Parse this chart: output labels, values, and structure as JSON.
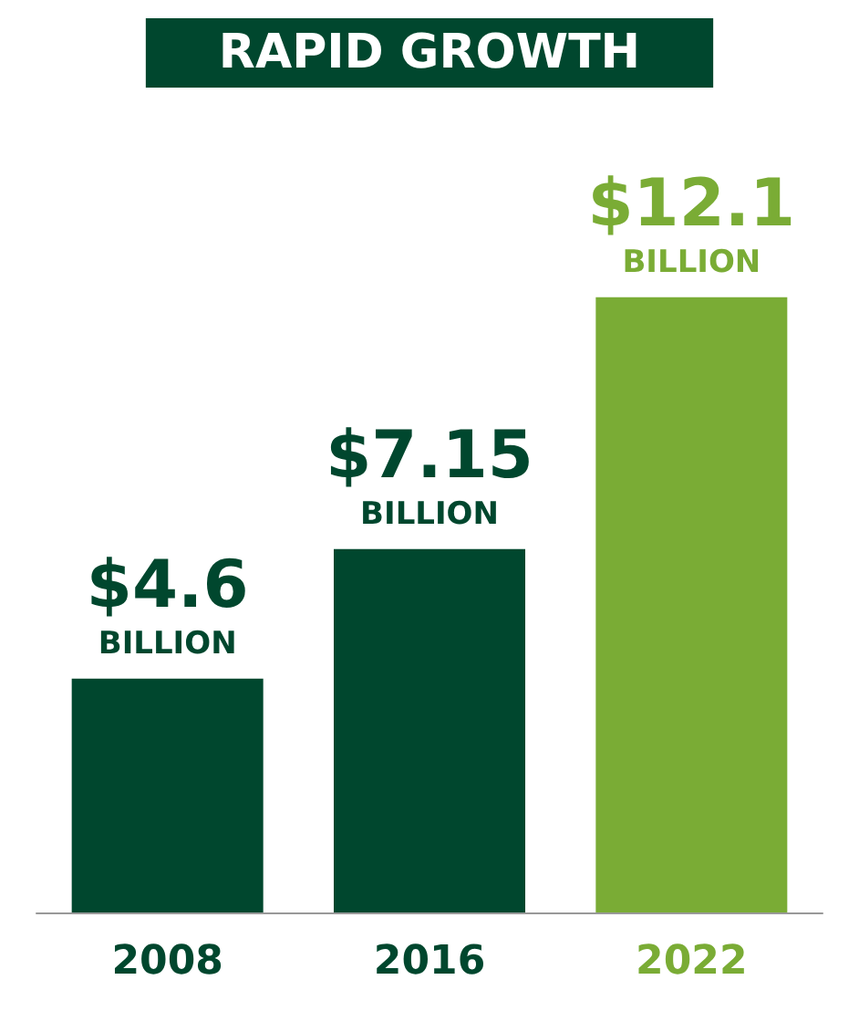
{
  "chart_data": {
    "type": "bar",
    "title": "RAPID GROWTH",
    "categories": [
      "2008",
      "2016",
      "2022"
    ],
    "values": [
      4.6,
      7.15,
      12.1
    ],
    "colors": [
      "#00472e",
      "#00472e",
      "#7aac35"
    ],
    "value_labels": [
      "$4.6\nBILLION",
      "$7.15\nBILLION",
      "$12.1\nBILLION"
    ],
    "grid": false
  }
}
